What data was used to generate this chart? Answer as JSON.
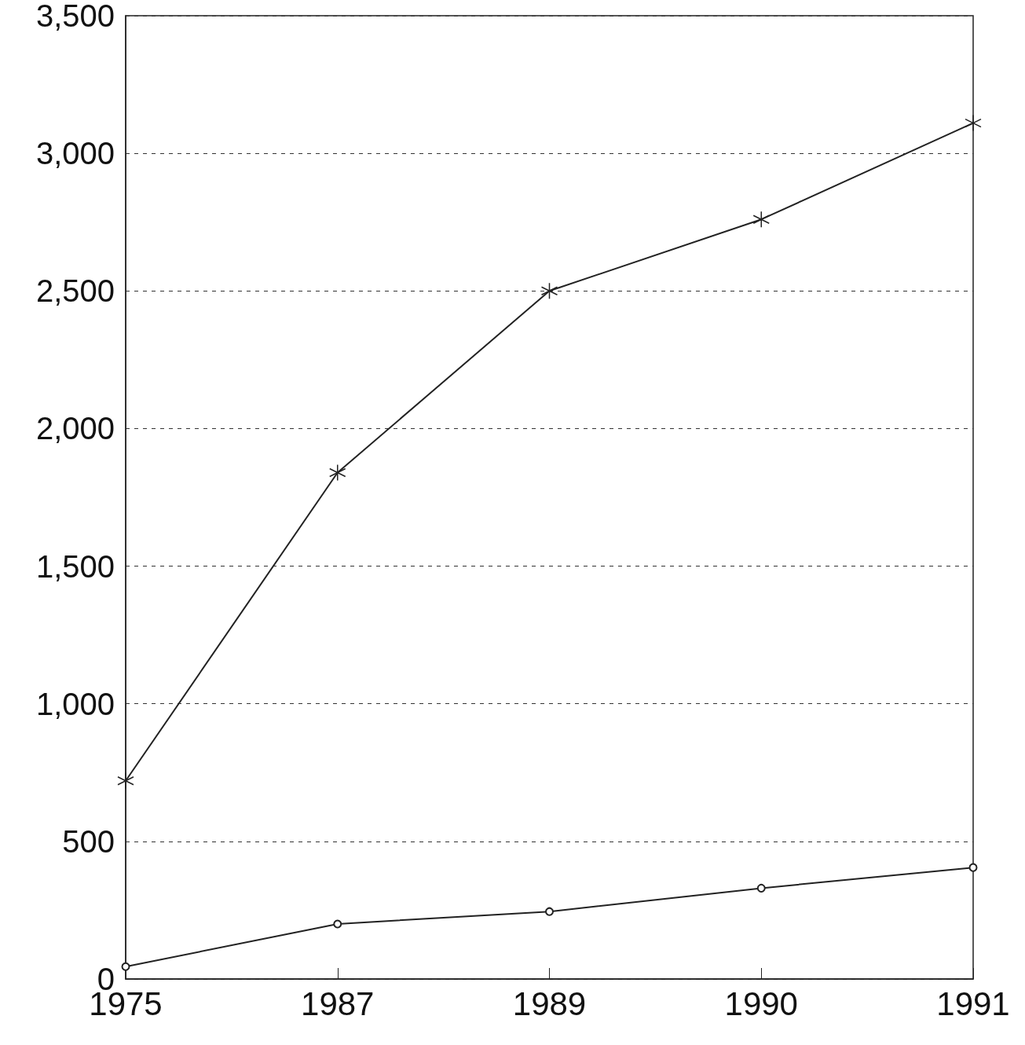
{
  "chart_data": {
    "type": "line",
    "categories": [
      "1975",
      "1987",
      "1989",
      "1990",
      "1991"
    ],
    "series": [
      {
        "color": "#222222",
        "marker": "cross",
        "values": [
          720,
          1840,
          2500,
          2760,
          3110
        ]
      },
      {
        "color": "#222222",
        "marker": "circle",
        "values": [
          45,
          200,
          245,
          330,
          405
        ]
      }
    ],
    "ylim": [
      0,
      3500
    ],
    "yticks": [
      0,
      {
        "value": 500,
        "label": "500"
      },
      {
        "value": 1000,
        "label": "1,000"
      },
      {
        "value": 1500,
        "label": "1,500"
      },
      {
        "value": 2000,
        "label": "2,000"
      },
      {
        "value": 2500,
        "label": "2,500"
      },
      {
        "value": 3000,
        "label": "3,000"
      },
      {
        "value": 3500,
        "label": "3,500"
      }
    ],
    "grid": "y",
    "line_style": "solid"
  }
}
